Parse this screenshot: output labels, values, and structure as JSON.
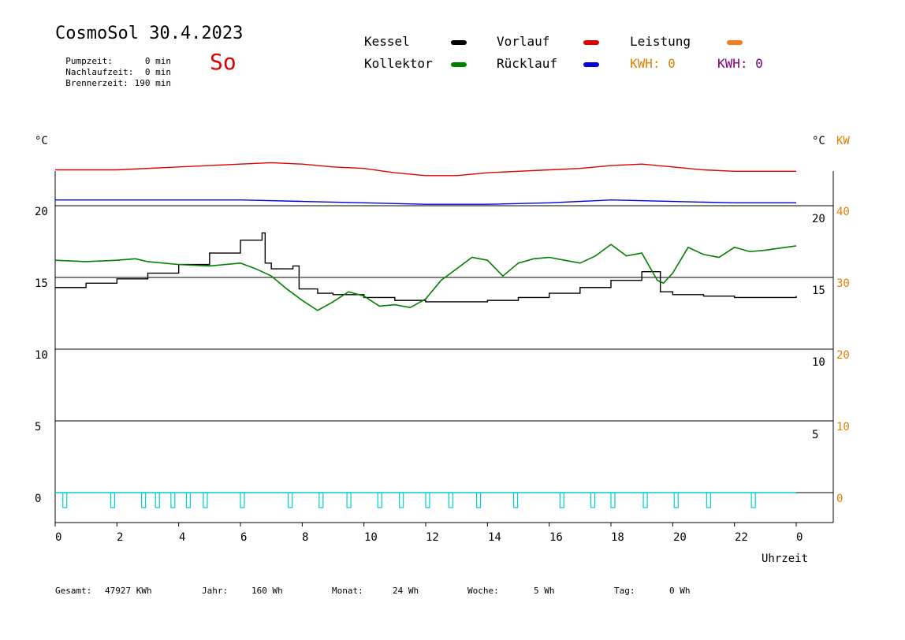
{
  "header": {
    "title": "CosmoSol 30.4.2023",
    "weekday": "So",
    "stats": [
      {
        "label": "Pumpzeit:",
        "value": "0 min"
      },
      {
        "label": "Nachlaufzeit:",
        "value": "0 min"
      },
      {
        "label": "Brennerzeit:",
        "value": "190 min"
      }
    ]
  },
  "legend": {
    "items": [
      {
        "label": "Kessel",
        "color": "#000000"
      },
      {
        "label": "Vorlauf",
        "color": "#e00000"
      },
      {
        "label": "Leistung",
        "color": "#f08020"
      },
      {
        "label": "Kollektor",
        "color": "#008000"
      },
      {
        "label": "Rücklauf",
        "color": "#0000e0"
      }
    ],
    "kwh_orange": "KWH: 0",
    "kwh_purple": "KWH: 0",
    "kwh_orange_color": "#e08000",
    "kwh_purple_color": "#800080"
  },
  "axes": {
    "left_unit": "°C",
    "right_unit_c": "°C",
    "right_unit_kw": "KW",
    "left_ticks": [
      "20",
      "15",
      "10",
      "5",
      "0"
    ],
    "right_inner_ticks": [
      "20",
      "15",
      "10",
      "5"
    ],
    "right_outer_ticks": [
      "40",
      "30",
      "20",
      "10",
      "0"
    ],
    "x_ticks": [
      "0",
      "2",
      "4",
      "6",
      "8",
      "10",
      "12",
      "14",
      "16",
      "18",
      "20",
      "22",
      "0"
    ],
    "xlabel": "Uhrzeit"
  },
  "footer": {
    "gesamt_label": "Gesamt:",
    "gesamt_value": "47927 KWh",
    "jahr_label": "Jahr:",
    "jahr_value": "160 Wh",
    "monat_label": "Monat:",
    "monat_value": "24 Wh",
    "woche_label": "Woche:",
    "woche_value": "5 Wh",
    "tag_label": "Tag:",
    "tag_value": "0 Wh"
  },
  "chart_data": {
    "type": "line",
    "title": "CosmoSol 30.4.2023",
    "xlabel": "Uhrzeit",
    "ylabel": "°C",
    "xlim": [
      0,
      24
    ],
    "ylim": [
      0,
      20
    ],
    "grid": "horizontal",
    "series": [
      {
        "name": "Kessel",
        "color": "#000000",
        "x": [
          0,
          1,
          2,
          3,
          4,
          5,
          6,
          6.7,
          6.8,
          7,
          7.7,
          7.9,
          8.5,
          9,
          10,
          11,
          12,
          13,
          14,
          15,
          16,
          17,
          18,
          19,
          19.3,
          19.6,
          20,
          21,
          22,
          23,
          24
        ],
        "y": [
          14.3,
          14.6,
          14.9,
          15.3,
          15.9,
          16.7,
          17.6,
          18.1,
          16.0,
          15.6,
          15.8,
          14.2,
          13.9,
          13.8,
          13.6,
          13.4,
          13.3,
          13.3,
          13.4,
          13.6,
          13.9,
          14.3,
          14.8,
          15.4,
          15.4,
          14.0,
          13.8,
          13.7,
          13.6,
          13.6,
          13.7
        ]
      },
      {
        "name": "Kollektor",
        "color": "#008000",
        "x": [
          0,
          1,
          2,
          2.6,
          3,
          4,
          5,
          6,
          6.5,
          7,
          7.5,
          8,
          8.5,
          9,
          9.5,
          10,
          10.5,
          11,
          11.5,
          12,
          12.5,
          13,
          13.5,
          14,
          14.5,
          15,
          15.5,
          16,
          16.5,
          17,
          17.5,
          18,
          18.5,
          19,
          19.5,
          19.7,
          20,
          20.5,
          21,
          21.5,
          22,
          22.5,
          23,
          24
        ],
        "y": [
          16.2,
          16.1,
          16.2,
          16.3,
          16.1,
          15.9,
          15.8,
          16.0,
          15.6,
          15.1,
          14.2,
          13.4,
          12.7,
          13.3,
          14.0,
          13.7,
          13.0,
          13.1,
          12.9,
          13.5,
          14.8,
          15.6,
          16.4,
          16.2,
          15.1,
          16.0,
          16.3,
          16.4,
          16.2,
          16.0,
          16.5,
          17.3,
          16.5,
          16.7,
          14.8,
          14.6,
          15.3,
          17.1,
          16.6,
          16.4,
          17.1,
          16.8,
          16.9,
          17.2
        ]
      },
      {
        "name": "Vorlauf",
        "color": "#e00000",
        "x": [
          0,
          2,
          4,
          6,
          7,
          8,
          9,
          10,
          11,
          12,
          13,
          14,
          15,
          16,
          17,
          18,
          19,
          20,
          21,
          22,
          23,
          24
        ],
        "y": [
          22.5,
          22.5,
          22.7,
          22.9,
          23.0,
          22.9,
          22.7,
          22.6,
          22.3,
          22.1,
          22.1,
          22.3,
          22.4,
          22.5,
          22.6,
          22.8,
          22.9,
          22.7,
          22.5,
          22.4,
          22.4,
          22.4
        ]
      },
      {
        "name": "Rücklauf",
        "color": "#0000e0",
        "x": [
          0,
          2,
          4,
          6,
          8,
          10,
          12,
          14,
          16,
          18,
          20,
          22,
          24
        ],
        "y": [
          20.4,
          20.4,
          20.4,
          20.4,
          20.3,
          20.2,
          20.1,
          20.1,
          20.2,
          20.4,
          20.3,
          20.2,
          20.2
        ]
      },
      {
        "name": "Leistung",
        "color": "#00d0d0",
        "x": [
          0.3,
          1.85,
          2.85,
          3.3,
          3.8,
          4.3,
          4.85,
          6.05,
          7.6,
          8.6,
          9.5,
          10.5,
          11.2,
          12.05,
          12.8,
          13.7,
          14.9,
          16.4,
          17.4,
          18.05,
          19.1,
          20.1,
          21.15,
          22.6
        ],
        "y": [
          0.5,
          0.5,
          0.5,
          0.5,
          0.5,
          0.5,
          0.5,
          0.5,
          0.5,
          0.5,
          0.5,
          0.5,
          0.5,
          0.5,
          0.5,
          0.5,
          0.5,
          0.5,
          0.5,
          0.5,
          0.5,
          0.5,
          0.5,
          0.5
        ]
      }
    ]
  }
}
